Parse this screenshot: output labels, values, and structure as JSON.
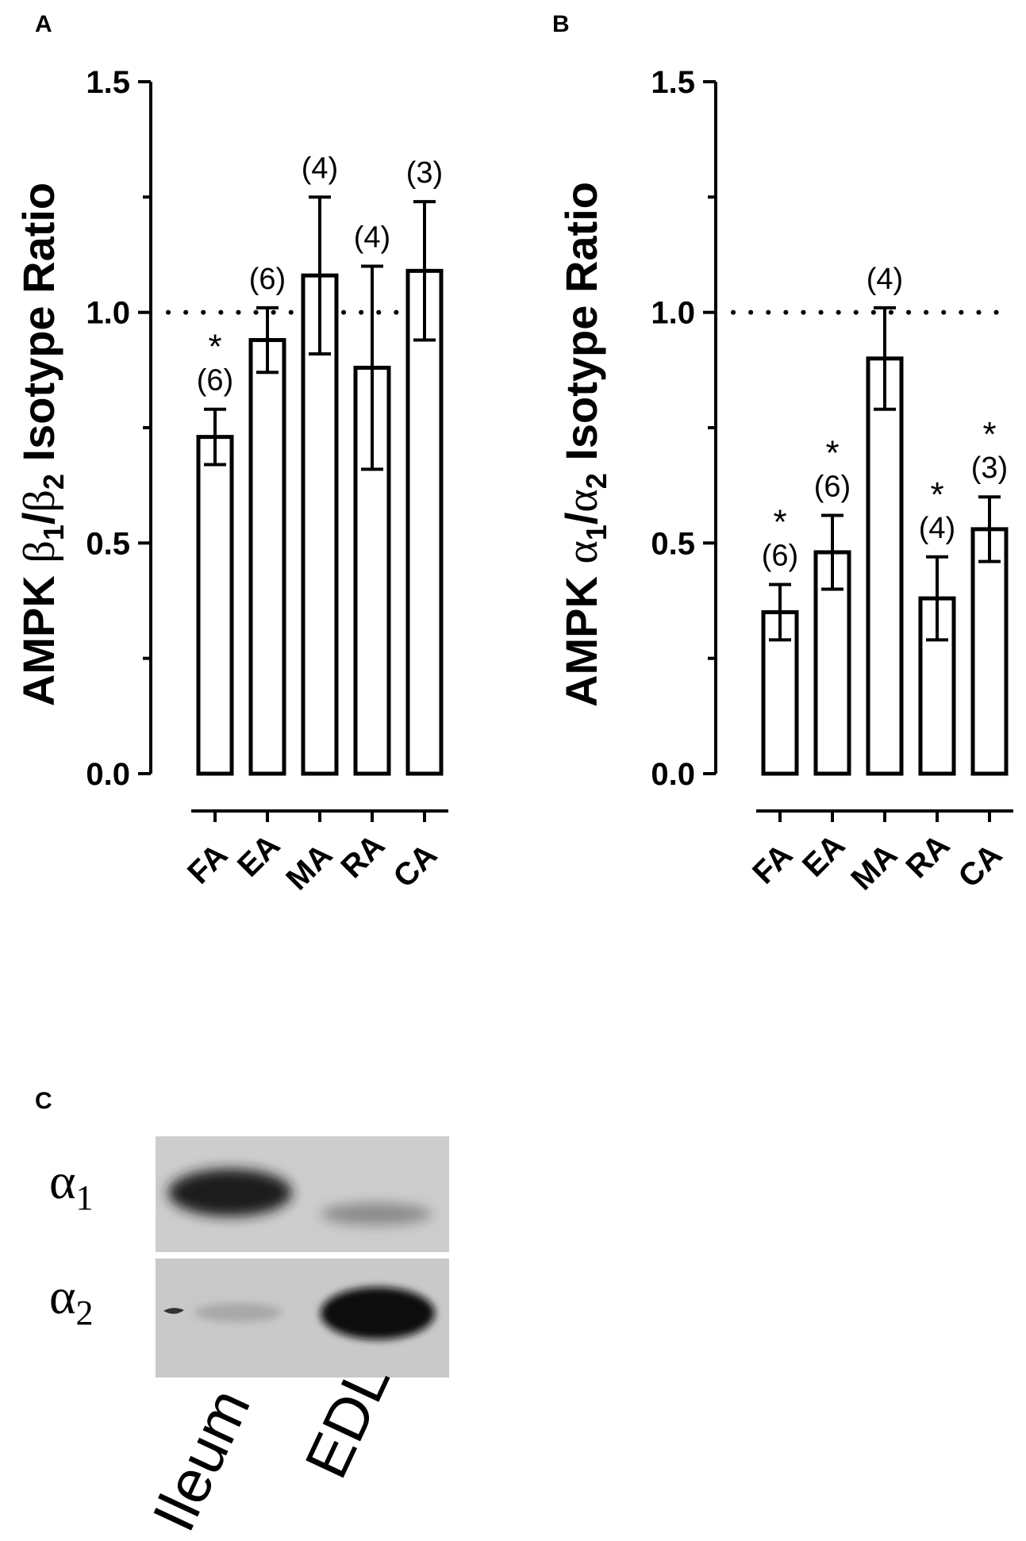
{
  "panels": {
    "a": {
      "letter": "A",
      "ylabel": {
        "prefix": "AMPK ",
        "sym": "β",
        "sub1": "1",
        "slash": "/",
        "sub2": "2",
        "suffix": " Isotype Ratio"
      }
    },
    "b": {
      "letter": "B",
      "ylabel": {
        "prefix": "AMPK ",
        "sym": "α",
        "sub1": "1",
        "slash": "/",
        "sub2": "2",
        "suffix": " Isotype Ratio"
      }
    },
    "c": {
      "letter": "C",
      "rows": [
        {
          "sym": "α",
          "sub": "1"
        },
        {
          "sym": "α",
          "sub": "2"
        }
      ],
      "lanes": [
        "Ileum",
        "EDL"
      ]
    }
  },
  "chart_data": [
    {
      "type": "bar",
      "title": "",
      "xlabel": "",
      "ylabel": "AMPK β1/β2 Isotype Ratio",
      "ylim": [
        0.0,
        1.5
      ],
      "yticks": [
        "0.0",
        "0.5",
        "1.0",
        "1.5"
      ],
      "reference_line": 1.0,
      "categories": [
        "FA",
        "EA",
        "MA",
        "RA",
        "CA"
      ],
      "values": [
        0.73,
        0.94,
        1.08,
        0.88,
        1.09
      ],
      "error": [
        0.06,
        0.07,
        0.17,
        0.22,
        0.15
      ],
      "n_labels": [
        "(6)",
        "(6)",
        "(4)",
        "(4)",
        "(3)"
      ],
      "significant": [
        true,
        false,
        false,
        false,
        false
      ],
      "star": "*"
    },
    {
      "type": "bar",
      "title": "",
      "xlabel": "",
      "ylabel": "AMPK α1/α2 Isotype Ratio",
      "ylim": [
        0.0,
        1.5
      ],
      "yticks": [
        "0.0",
        "0.5",
        "1.0",
        "1.5"
      ],
      "reference_line": 1.0,
      "categories": [
        "FA",
        "EA",
        "MA",
        "RA",
        "CA"
      ],
      "values": [
        0.35,
        0.48,
        0.9,
        0.38,
        0.53
      ],
      "error": [
        0.06,
        0.08,
        0.11,
        0.09,
        0.07
      ],
      "n_labels": [
        "(6)",
        "(6)",
        "(4)",
        "(4)",
        "(3)"
      ],
      "significant": [
        true,
        true,
        false,
        true,
        true
      ],
      "star": "*"
    }
  ],
  "colors": {
    "ink": "#000000",
    "bar_fill": "#ffffff",
    "blot_bg": "#cdcdcd",
    "band": "#111111"
  }
}
